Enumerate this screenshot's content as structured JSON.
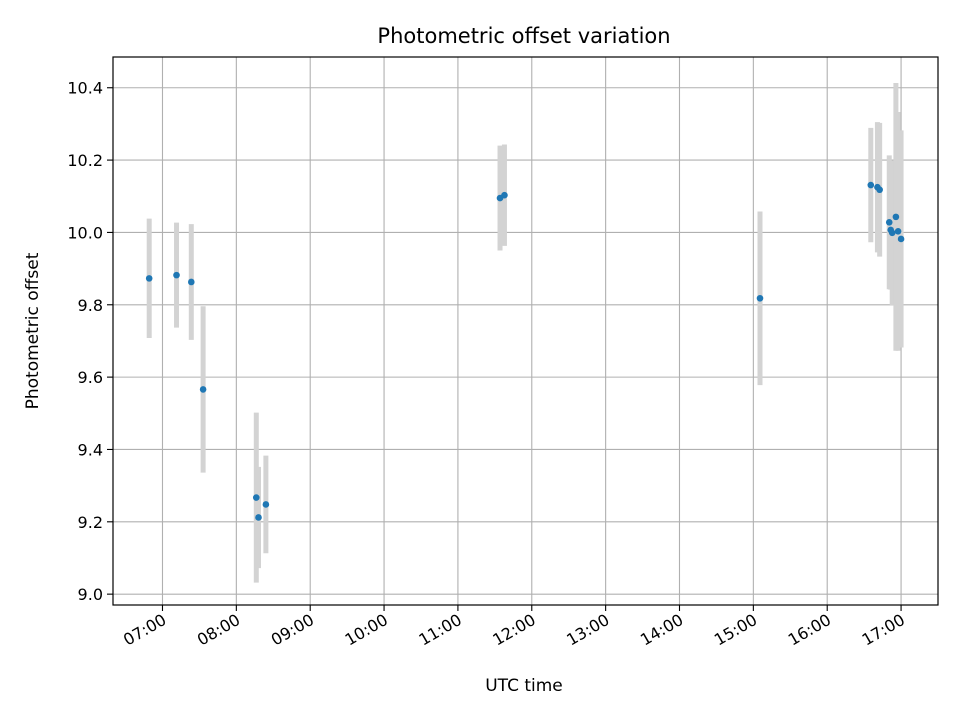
{
  "chart_data": {
    "type": "scatter",
    "title": "Photometric offset variation",
    "xlabel": "UTC time",
    "ylabel": "Photometric offset",
    "x_unit": "hours (UTC)",
    "xlim": [
      6.33,
      17.5
    ],
    "ylim": [
      8.97,
      10.485
    ],
    "grid": true,
    "x_ticks": [
      {
        "value": 7,
        "label": "07:00"
      },
      {
        "value": 8,
        "label": "08:00"
      },
      {
        "value": 9,
        "label": "09:00"
      },
      {
        "value": 10,
        "label": "10:00"
      },
      {
        "value": 11,
        "label": "11:00"
      },
      {
        "value": 12,
        "label": "12:00"
      },
      {
        "value": 13,
        "label": "13:00"
      },
      {
        "value": 14,
        "label": "14:00"
      },
      {
        "value": 15,
        "label": "15:00"
      },
      {
        "value": 16,
        "label": "16:00"
      },
      {
        "value": 17,
        "label": "17:00"
      }
    ],
    "y_ticks": [
      {
        "value": 9.0,
        "label": "9.0"
      },
      {
        "value": 9.2,
        "label": "9.2"
      },
      {
        "value": 9.4,
        "label": "9.4"
      },
      {
        "value": 9.6,
        "label": "9.6"
      },
      {
        "value": 9.8,
        "label": "9.8"
      },
      {
        "value": 10.0,
        "label": "10.0"
      },
      {
        "value": 10.2,
        "label": "10.2"
      },
      {
        "value": 10.4,
        "label": "10.4"
      }
    ],
    "points": [
      {
        "x": 6.82,
        "y": 9.873,
        "err": 0.165
      },
      {
        "x": 7.19,
        "y": 9.882,
        "err": 0.145
      },
      {
        "x": 7.39,
        "y": 9.863,
        "err": 0.16
      },
      {
        "x": 7.55,
        "y": 9.566,
        "err": 0.23
      },
      {
        "x": 8.27,
        "y": 9.267,
        "err": 0.235
      },
      {
        "x": 8.3,
        "y": 9.212,
        "err": 0.14
      },
      {
        "x": 8.4,
        "y": 9.248,
        "err": 0.135
      },
      {
        "x": 11.57,
        "y": 10.095,
        "err": 0.145
      },
      {
        "x": 11.63,
        "y": 10.103,
        "err": 0.14
      },
      {
        "x": 15.09,
        "y": 9.818,
        "err": 0.24
      },
      {
        "x": 16.59,
        "y": 10.131,
        "err": 0.158
      },
      {
        "x": 16.68,
        "y": 10.125,
        "err": 0.18
      },
      {
        "x": 16.71,
        "y": 10.118,
        "err": 0.185
      },
      {
        "x": 16.84,
        "y": 10.028,
        "err": 0.185
      },
      {
        "x": 16.86,
        "y": 10.007,
        "err": 0.165
      },
      {
        "x": 16.88,
        "y": 9.999,
        "err": 0.2
      },
      {
        "x": 16.93,
        "y": 10.043,
        "err": 0.37
      },
      {
        "x": 16.96,
        "y": 10.003,
        "err": 0.33
      },
      {
        "x": 17.0,
        "y": 9.982,
        "err": 0.3
      }
    ],
    "colors": {
      "marker": "#1f77b4",
      "errorbar": "#d3d3d3",
      "grid": "#b0b0b0",
      "axis": "#000000"
    }
  }
}
